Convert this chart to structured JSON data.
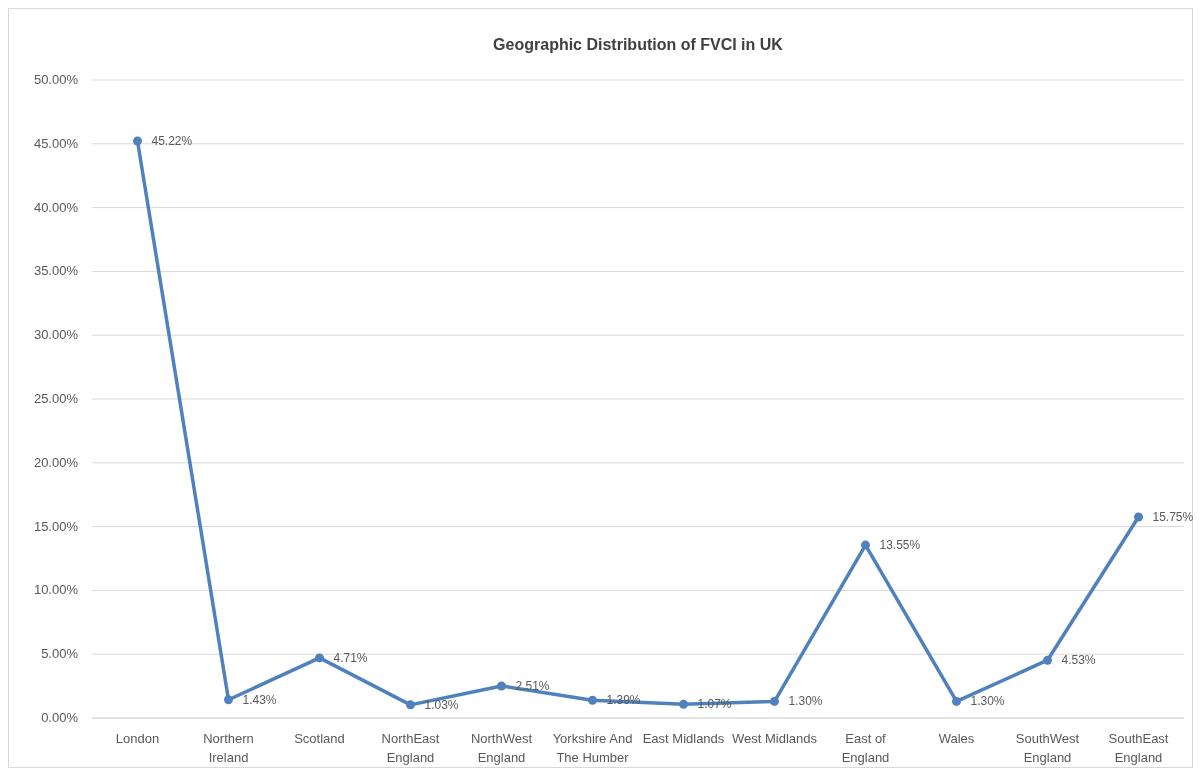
{
  "chart_data": {
    "type": "line",
    "title": "Geographic Distribution of FVCI in UK",
    "categories": [
      "London",
      "Northern Ireland",
      "Scotland",
      "NorthEast England",
      "NorthWest England",
      "Yorkshire And The Humber",
      "East Midlands",
      "West Midlands",
      "East of England",
      "Wales",
      "SouthWest England",
      "SouthEast England"
    ],
    "series": [
      {
        "color": "#4f81bd",
        "values": [
          45.22,
          1.43,
          4.71,
          1.03,
          2.51,
          1.39,
          1.07,
          1.3,
          13.55,
          1.3,
          4.53,
          15.75
        ],
        "value_labels": [
          "45.22%",
          "1.43%",
          "4.71%",
          "1.03%",
          "2.51%",
          "1.39%",
          "1.07%",
          "1.30%",
          "13.55%",
          "1.30%",
          "4.53%",
          "15.75%"
        ]
      }
    ],
    "ylim": [
      0,
      50
    ],
    "yticks": [
      {
        "value": 0,
        "label": "0.00%"
      },
      {
        "value": 5,
        "label": "5.00%"
      },
      {
        "value": 10,
        "label": "10.00%"
      },
      {
        "value": 15,
        "label": "15.00%"
      },
      {
        "value": 20,
        "label": "20.00%"
      },
      {
        "value": 25,
        "label": "25.00%"
      },
      {
        "value": 30,
        "label": "30.00%"
      },
      {
        "value": 35,
        "label": "35.00%"
      },
      {
        "value": 40,
        "label": "40.00%"
      },
      {
        "value": 45,
        "label": "45.00%"
      },
      {
        "value": 50,
        "label": "50.00%"
      }
    ],
    "grid": "y",
    "marker": "circle",
    "line_style": "solid"
  }
}
